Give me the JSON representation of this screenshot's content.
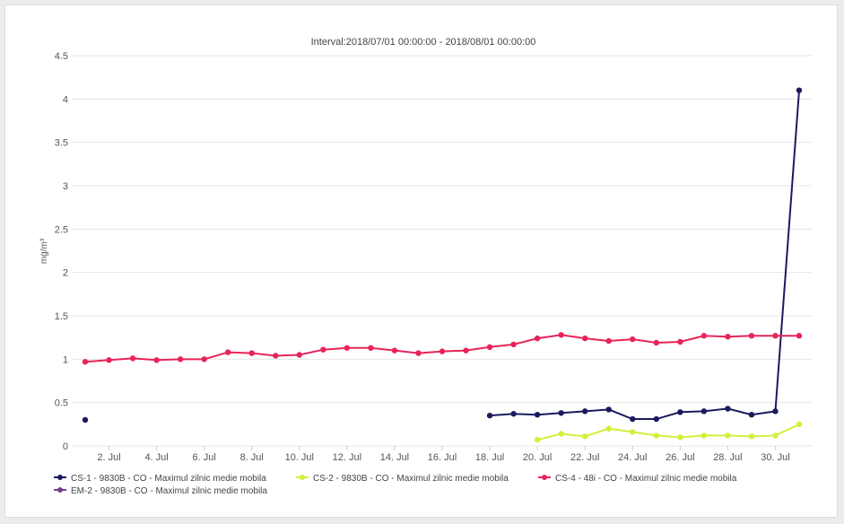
{
  "chart_data": {
    "type": "line",
    "title": "Interval:2018/07/01 00:00:00 - 2018/08/01 00:00:00",
    "ylabel": "mg/m³",
    "ylim": [
      0,
      4.5
    ],
    "yticks": [
      "0",
      "0.5",
      "1",
      "1.5",
      "2",
      "2.5",
      "3",
      "3.5",
      "4",
      "4.5"
    ],
    "xticks": [
      "2. Jul",
      "4. Jul",
      "6. Jul",
      "8. Jul",
      "10. Jul",
      "12. Jul",
      "14. Jul",
      "16. Jul",
      "18. Jul",
      "20. Jul",
      "22. Jul",
      "24. Jul",
      "26. Jul",
      "28. Jul",
      "30. Jul"
    ],
    "x_days": [
      1,
      31
    ],
    "grid": true,
    "legend_position": "bottom",
    "series": [
      {
        "name": "CS-1 - 9830B - CO - Maximul zilnic medie mobila",
        "color": "#1b1a5e",
        "points": [
          [
            1,
            0.3
          ],
          [
            18,
            0.35
          ],
          [
            19,
            0.37
          ],
          [
            20,
            0.36
          ],
          [
            21,
            0.38
          ],
          [
            22,
            0.4
          ],
          [
            23,
            0.42
          ],
          [
            24,
            0.31
          ],
          [
            25,
            0.31
          ],
          [
            26,
            0.39
          ],
          [
            27,
            0.4
          ],
          [
            28,
            0.43
          ],
          [
            29,
            0.36
          ],
          [
            30,
            0.4
          ],
          [
            31,
            4.1
          ]
        ]
      },
      {
        "name": "CS-2 - 9830B - CO - Maximul zilnic medie mobila",
        "color": "#d4ee3a",
        "points": [
          [
            20,
            0.07
          ],
          [
            21,
            0.14
          ],
          [
            22,
            0.11
          ],
          [
            23,
            0.2
          ],
          [
            24,
            0.16
          ],
          [
            25,
            0.12
          ],
          [
            26,
            0.1
          ],
          [
            27,
            0.12
          ],
          [
            28,
            0.12
          ],
          [
            29,
            0.11
          ],
          [
            30,
            0.12
          ],
          [
            31,
            0.25
          ]
        ]
      },
      {
        "name": "CS-4 - 48i - CO - Maximul zilnic medie mobila",
        "color": "#e8245a",
        "points": [
          [
            1,
            0.97
          ],
          [
            2,
            0.99
          ],
          [
            3,
            1.01
          ],
          [
            4,
            0.99
          ],
          [
            5,
            1.0
          ],
          [
            6,
            1.0
          ],
          [
            7,
            1.08
          ],
          [
            8,
            1.07
          ],
          [
            9,
            1.04
          ],
          [
            10,
            1.05
          ],
          [
            11,
            1.11
          ],
          [
            12,
            1.13
          ],
          [
            13,
            1.13
          ],
          [
            14,
            1.1
          ],
          [
            15,
            1.07
          ],
          [
            16,
            1.09
          ],
          [
            17,
            1.1
          ],
          [
            18,
            1.14
          ],
          [
            19,
            1.17
          ],
          [
            20,
            1.24
          ],
          [
            21,
            1.28
          ],
          [
            22,
            1.24
          ],
          [
            23,
            1.21
          ],
          [
            24,
            1.23
          ],
          [
            25,
            1.19
          ],
          [
            26,
            1.2
          ],
          [
            27,
            1.27
          ],
          [
            28,
            1.26
          ],
          [
            29,
            1.27
          ],
          [
            30,
            1.27
          ],
          [
            31,
            1.27
          ]
        ]
      },
      {
        "name": "EM-2 - 9830B - CO - Maximul zilnic medie mobila",
        "color": "#7b3d8f",
        "points": []
      }
    ]
  }
}
